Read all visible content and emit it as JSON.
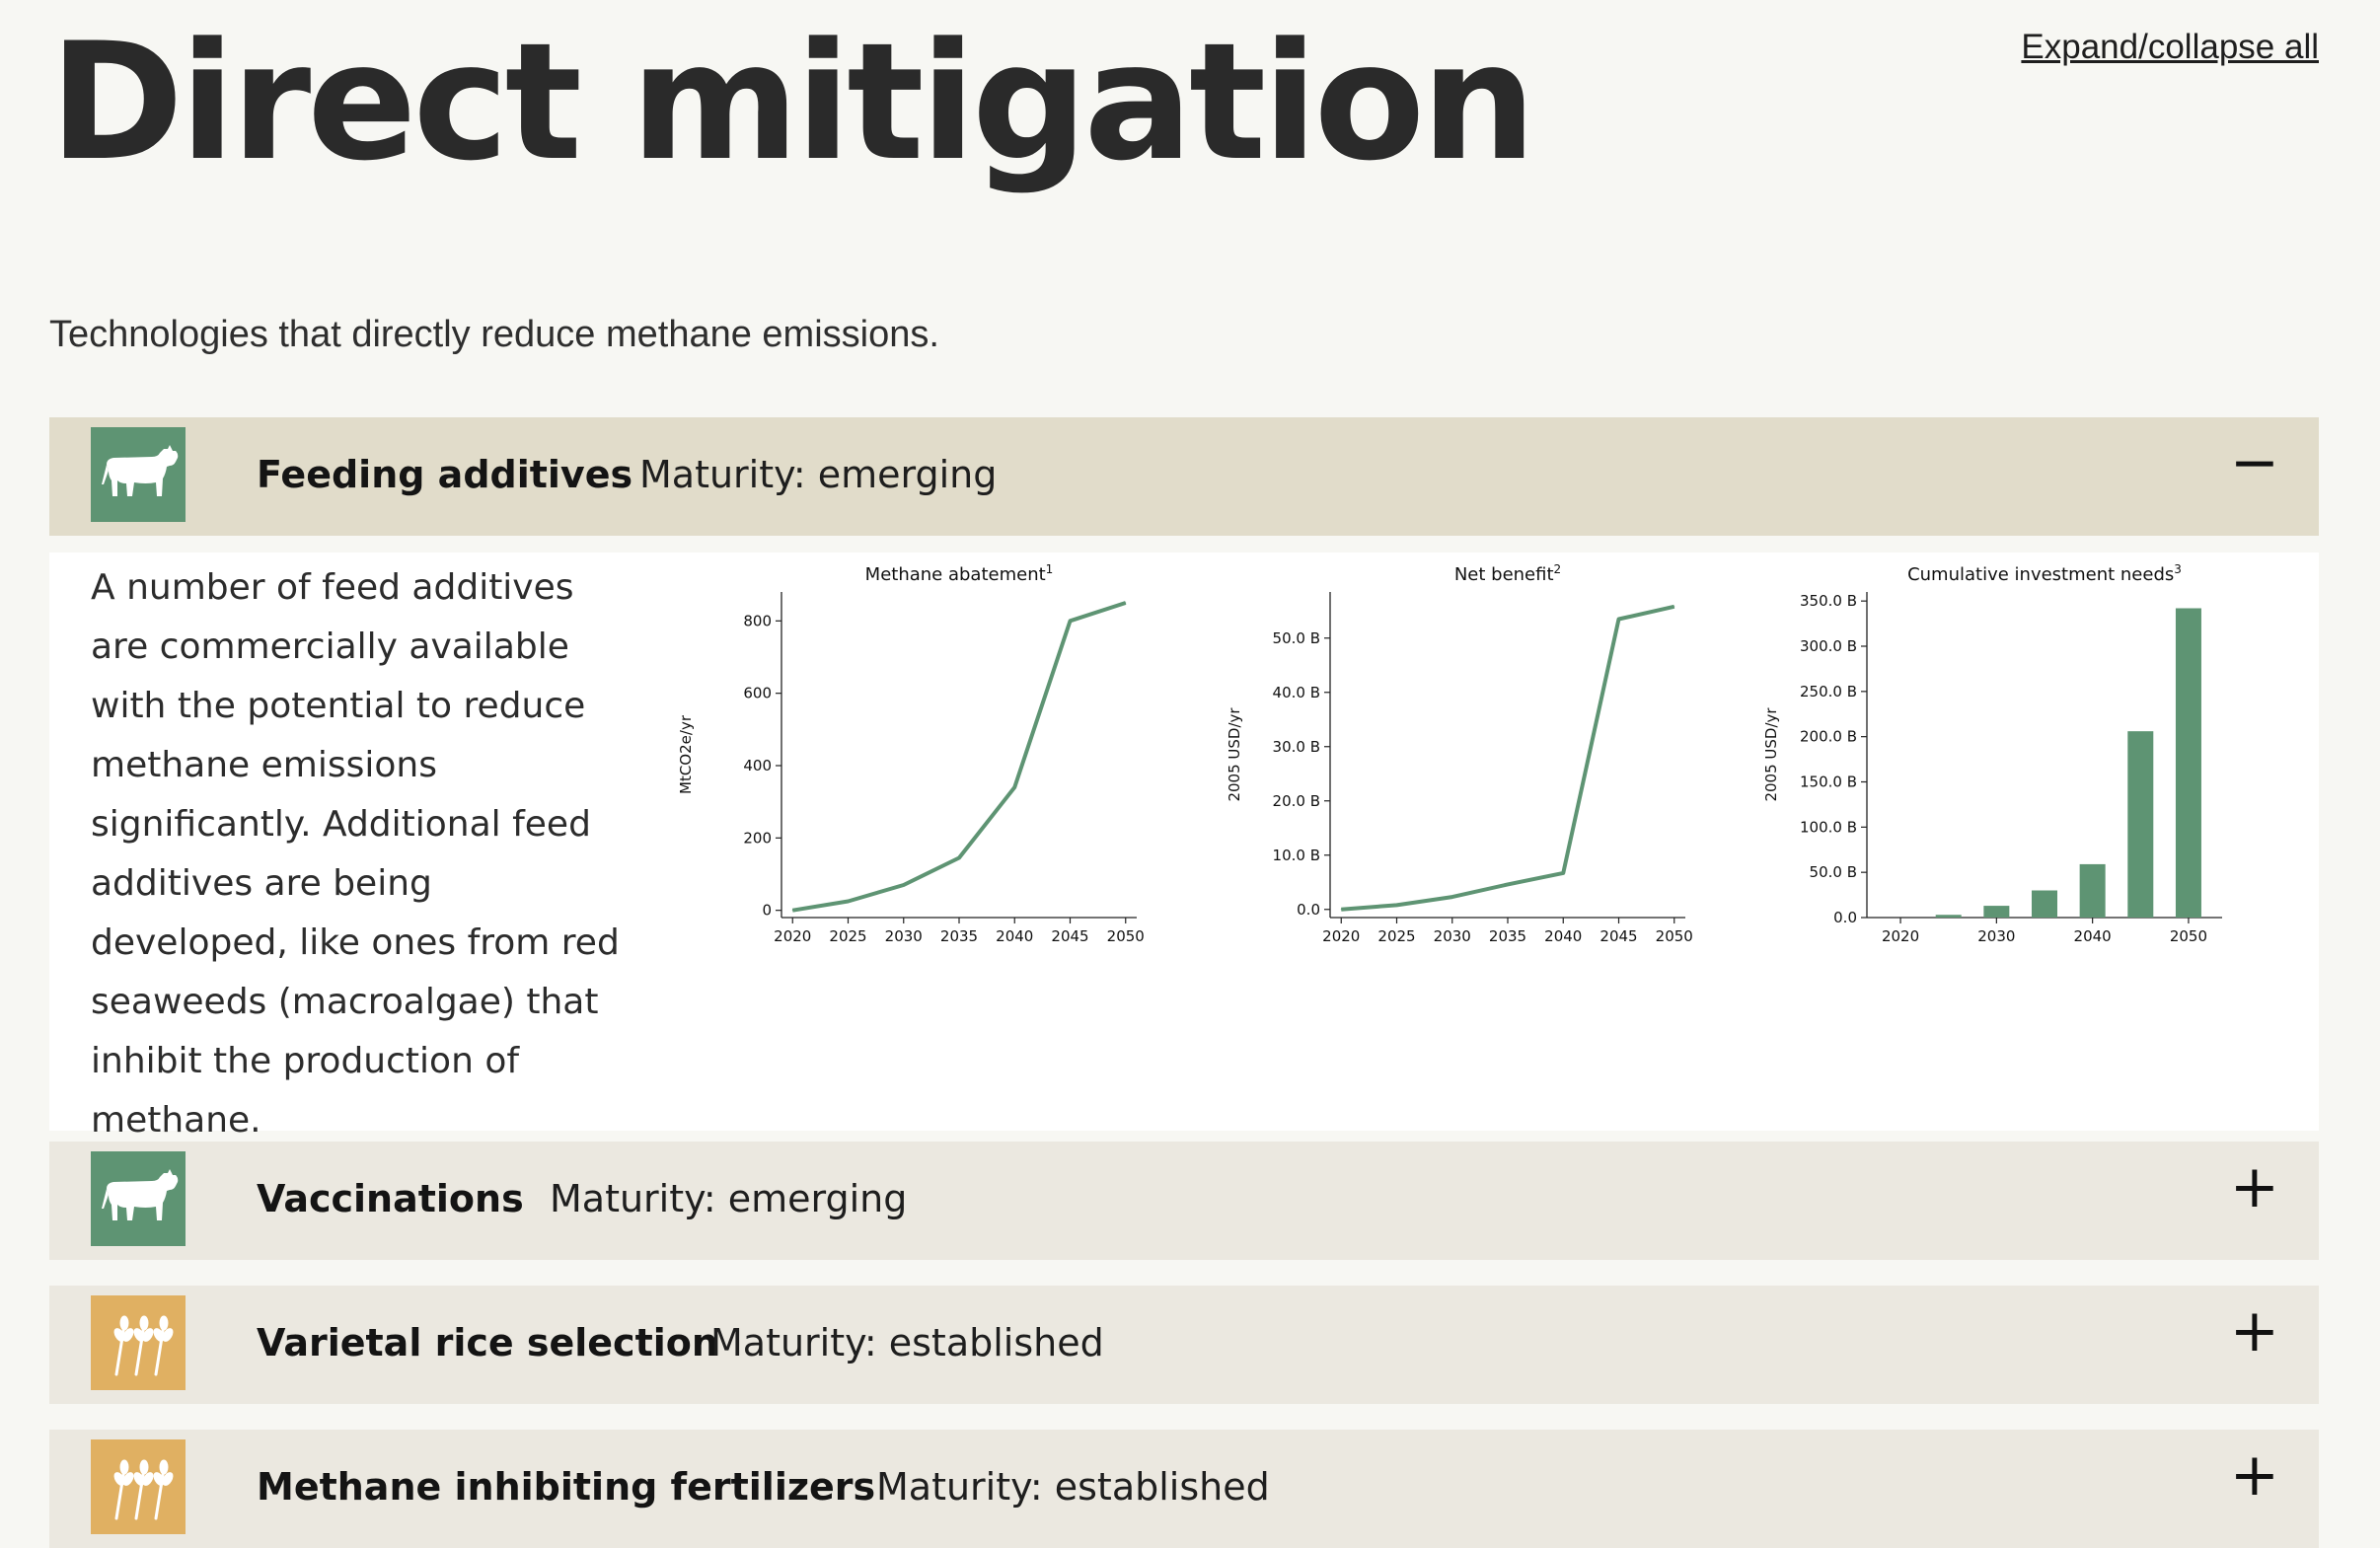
{
  "page": {
    "title": "Direct mitigation",
    "expand_link": "Expand/collapse all",
    "intro": "Technologies that directly reduce methane emissions."
  },
  "colors": {
    "accent_green": "#5e9473",
    "accent_amber": "#e0b062",
    "header_open": "#e1dcca",
    "header_closed": "#ebe8e0"
  },
  "panels": [
    {
      "title": "Feeding additives",
      "maturity": "Maturity: emerging",
      "icon": "cow-icon",
      "toggle": "−",
      "expanded": true,
      "description": "A number of feed additives are commercially available with the potential to reduce methane emissions significantly. Additional feed additives are being developed, like ones from red seaweeds (macroalgae) that inhibit the production of methane."
    },
    {
      "title": "Vaccinations",
      "maturity": "Maturity: emerging",
      "icon": "cow-icon",
      "toggle": "+",
      "expanded": false
    },
    {
      "title": "Varietal rice selection",
      "maturity": "Maturity: established",
      "icon": "wheat-icon",
      "toggle": "+",
      "expanded": false
    },
    {
      "title": "Methane inhibiting fertilizers",
      "maturity": "Maturity: established",
      "icon": "wheat-icon",
      "toggle": "+",
      "expanded": false
    }
  ],
  "chart_data": [
    {
      "type": "line",
      "title": "Methane abatement",
      "title_sup": "1",
      "xlabel": "",
      "ylabel": "MtCO2e/yr",
      "x": [
        2020,
        2025,
        2030,
        2035,
        2040,
        2045,
        2050
      ],
      "y": [
        0,
        25,
        70,
        145,
        340,
        800,
        850
      ],
      "xlim": [
        2019,
        2051
      ],
      "ylim": [
        -20,
        880
      ],
      "xticks": [
        2020,
        2025,
        2030,
        2035,
        2040,
        2045,
        2050
      ],
      "yticks": [
        0,
        200,
        400,
        600,
        800
      ],
      "ytick_labels": [
        "0",
        "200",
        "400",
        "600",
        "800"
      ],
      "color": "#5e9473",
      "grid": false
    },
    {
      "type": "line",
      "title": "Net benefit",
      "title_sup": "2",
      "xlabel": "",
      "ylabel": "2005 USD/yr",
      "x": [
        2020,
        2025,
        2030,
        2035,
        2040,
        2045,
        2050
      ],
      "y": [
        0,
        0.8,
        2.3,
        4.6,
        6.7,
        53.5,
        55.8
      ],
      "xlim": [
        2019,
        2051
      ],
      "ylim": [
        -1.5,
        58.5
      ],
      "xticks": [
        2020,
        2025,
        2030,
        2035,
        2040,
        2045,
        2050
      ],
      "yticks": [
        0,
        10,
        20,
        30,
        40,
        50
      ],
      "ytick_labels": [
        "0.0",
        "10.0 B",
        "20.0 B",
        "30.0 B",
        "40.0 B",
        "50.0 B"
      ],
      "color": "#5e9473",
      "grid": false
    },
    {
      "type": "bar",
      "title": "Cumulative investment needs",
      "title_sup": "3",
      "xlabel": "",
      "ylabel": "2005 USD/yr",
      "x": [
        2020,
        2025,
        2030,
        2035,
        2040,
        2045,
        2050
      ],
      "y": [
        0,
        3,
        13,
        30,
        59,
        206,
        342
      ],
      "xlim": [
        2016.5,
        2053.5
      ],
      "ylim": [
        0,
        360
      ],
      "xticks": [
        2020,
        2030,
        2040,
        2050
      ],
      "yticks": [
        0,
        50,
        100,
        150,
        200,
        250,
        300,
        350
      ],
      "ytick_labels": [
        "0.0",
        "50.0 B",
        "100.0 B",
        "150.0 B",
        "200.0 B",
        "250.0 B",
        "300.0 B",
        "350.0 B"
      ],
      "color": "#5e9473",
      "grid": false
    }
  ]
}
